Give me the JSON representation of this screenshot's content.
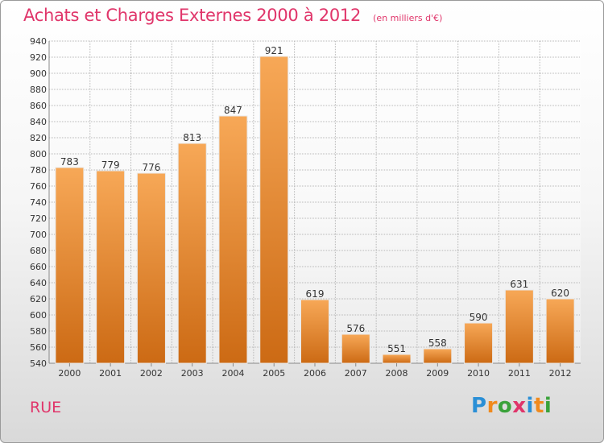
{
  "header": {
    "title": "Achats et Charges Externes 2000 à 2012",
    "subtitle": "(en milliers d'€)"
  },
  "footer": {
    "location": "RUE",
    "brand_letters": [
      "P",
      "r",
      "o",
      "x",
      "i",
      "t",
      "i"
    ],
    "brand_colors": [
      "#2a8fd6",
      "#f08a1d",
      "#3aa23a",
      "#e0356a",
      "#2a8fd6",
      "#f08a1d",
      "#3aa23a"
    ]
  },
  "colors": {
    "bar_top": "#f7a857",
    "bar_bottom": "#cc6a14",
    "bar_edge": "#e9e9e9",
    "grid": "#b8b8b8",
    "axis_text": "#333333",
    "title": "#e0356a"
  },
  "chart_data": {
    "type": "bar",
    "categories": [
      "2000",
      "2001",
      "2002",
      "2003",
      "2004",
      "2005",
      "2006",
      "2007",
      "2008",
      "2009",
      "2010",
      "2011",
      "2012"
    ],
    "values": [
      783,
      779,
      776,
      813,
      847,
      921,
      619,
      576,
      551,
      558,
      590,
      631,
      620
    ],
    "title": "Achats et Charges Externes 2000 à 2012",
    "subtitle": "(en milliers d'€)",
    "xlabel": "",
    "ylabel": "",
    "ylim": [
      540,
      940
    ],
    "ytick_step": 20,
    "grid": true,
    "data_labels": true
  }
}
